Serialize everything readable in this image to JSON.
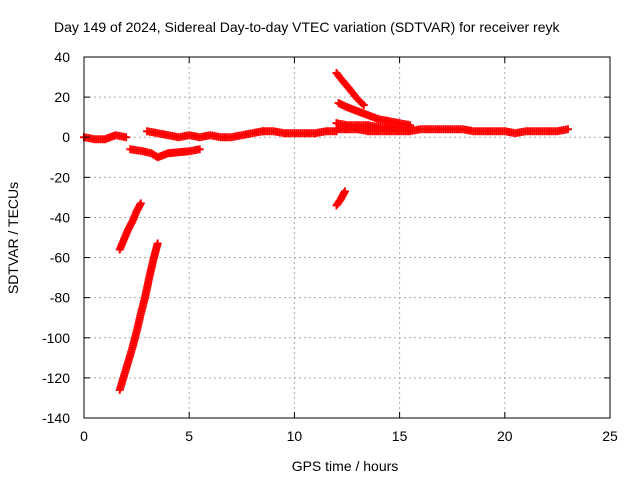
{
  "chart_data": {
    "type": "scatter",
    "title": "Day 149 of 2024, Sidereal Day-to-day VTEC variation (SDTVAR) for receiver reyk",
    "xlabel": "GPS time / hours",
    "ylabel": "SDTVAR / TECUs",
    "xlim": [
      0,
      25
    ],
    "ylim": [
      -140,
      40
    ],
    "xticks": [
      "0",
      "5",
      "10",
      "15",
      "20",
      "25"
    ],
    "yticks": [
      "-140",
      "-120",
      "-100",
      "-80",
      "-60",
      "-40",
      "-20",
      "0",
      "20",
      "40"
    ],
    "grid": true,
    "marker": "plus",
    "marker_color": "#ff0000",
    "series": [
      {
        "points": [
          [
            0.0,
            0
          ],
          [
            0.5,
            -1
          ],
          [
            1.0,
            -1
          ],
          [
            1.5,
            1
          ],
          [
            2.0,
            0
          ]
        ]
      },
      {
        "points": [
          [
            2.2,
            -6
          ],
          [
            2.8,
            -7
          ],
          [
            3.2,
            -8
          ],
          [
            3.5,
            -10
          ],
          [
            4.0,
            -8
          ],
          [
            5.0,
            -7
          ],
          [
            5.5,
            -6
          ]
        ]
      },
      {
        "points": [
          [
            3.0,
            3
          ],
          [
            3.5,
            2
          ],
          [
            4.0,
            1
          ],
          [
            4.5,
            0
          ],
          [
            5.0,
            1
          ],
          [
            5.5,
            0
          ],
          [
            6.0,
            1
          ],
          [
            6.5,
            0
          ],
          [
            7.0,
            0
          ],
          [
            7.5,
            1
          ],
          [
            8.0,
            2
          ],
          [
            8.5,
            3
          ]
        ]
      },
      {
        "points": [
          [
            8.5,
            3
          ],
          [
            9.0,
            3
          ],
          [
            9.5,
            2
          ],
          [
            10.0,
            2
          ],
          [
            10.5,
            2
          ],
          [
            11.0,
            2
          ],
          [
            11.5,
            3
          ],
          [
            12.0,
            3
          ]
        ]
      },
      {
        "points": [
          [
            12.0,
            4
          ],
          [
            12.5,
            4
          ],
          [
            13.0,
            4
          ],
          [
            13.5,
            3
          ],
          [
            14.0,
            3
          ],
          [
            14.5,
            3
          ],
          [
            15.0,
            3
          ],
          [
            15.5,
            3
          ],
          [
            16.0,
            4
          ],
          [
            16.5,
            4
          ],
          [
            17.0,
            4
          ],
          [
            17.5,
            4
          ],
          [
            18.0,
            4
          ],
          [
            18.5,
            3
          ],
          [
            19.0,
            3
          ],
          [
            19.5,
            3
          ],
          [
            20.0,
            3
          ],
          [
            20.5,
            2
          ],
          [
            21.0,
            3
          ],
          [
            21.5,
            3
          ],
          [
            22.0,
            3
          ],
          [
            22.5,
            3
          ],
          [
            23.0,
            4
          ]
        ]
      },
      {
        "points": [
          [
            12.0,
            7
          ],
          [
            12.5,
            6
          ],
          [
            13.0,
            6
          ],
          [
            13.5,
            6
          ],
          [
            14.0,
            5
          ],
          [
            14.5,
            5
          ],
          [
            15.0,
            5
          ],
          [
            15.5,
            5
          ]
        ]
      },
      {
        "points": [
          [
            12.1,
            17
          ],
          [
            12.5,
            15
          ],
          [
            13.0,
            13
          ],
          [
            13.5,
            11
          ],
          [
            14.0,
            9
          ],
          [
            14.5,
            8
          ],
          [
            15.0,
            7
          ],
          [
            15.5,
            6
          ]
        ]
      },
      {
        "points": [
          [
            12.0,
            32
          ],
          [
            12.3,
            28
          ],
          [
            12.7,
            23
          ],
          [
            13.0,
            19
          ],
          [
            13.3,
            16
          ]
        ]
      },
      {
        "points": [
          [
            12.0,
            -34
          ],
          [
            12.2,
            -31
          ],
          [
            12.4,
            -27
          ]
        ]
      },
      {
        "points": [
          [
            1.7,
            -56
          ],
          [
            1.9,
            -51
          ],
          [
            2.1,
            -46
          ],
          [
            2.3,
            -42
          ],
          [
            2.5,
            -37
          ],
          [
            2.7,
            -33
          ]
        ]
      },
      {
        "points": [
          [
            1.7,
            -126
          ],
          [
            1.9,
            -119
          ],
          [
            2.1,
            -112
          ],
          [
            2.3,
            -105
          ],
          [
            2.5,
            -97
          ],
          [
            2.7,
            -88
          ],
          [
            2.9,
            -80
          ],
          [
            3.1,
            -70
          ],
          [
            3.3,
            -61
          ],
          [
            3.5,
            -53
          ]
        ]
      }
    ]
  }
}
